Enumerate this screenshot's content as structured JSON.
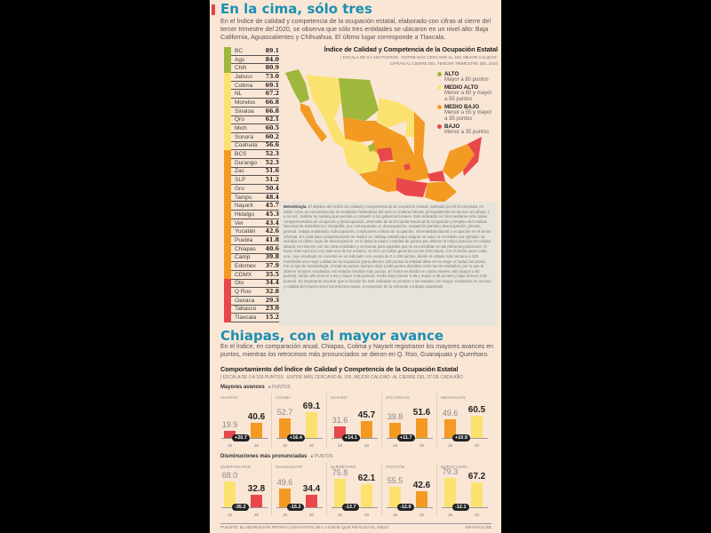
{
  "section1": {
    "title": "En la cima, sólo tres",
    "intro": "En el Índice de calidad y competencia de la ocupación estatal, elaborado con cifras al cierre del tercer trimestre del 2020, se observa que sólo tres entidades se ubicaron en un nivel alto: Baja California, Aguascalientes y Chihuahua. El último lugar corresponde a Tlaxcala."
  },
  "ranking": [
    {
      "state": "BC",
      "value": "89.1"
    },
    {
      "state": "Ags",
      "value": "84.0"
    },
    {
      "state": "Chih",
      "value": "80.9"
    },
    {
      "state": "Jalisco",
      "value": "73.0"
    },
    {
      "state": "Colima",
      "value": "69.1"
    },
    {
      "state": "NL",
      "value": "67.2"
    },
    {
      "state": "Morelos",
      "value": "66.8"
    },
    {
      "state": "Sinaloa",
      "value": "66.8"
    },
    {
      "state": "Qro",
      "value": "62.1"
    },
    {
      "state": "Mich",
      "value": "60.5"
    },
    {
      "state": "Sonora",
      "value": "60.2"
    },
    {
      "state": "Coahuila",
      "value": "56.6"
    },
    {
      "state": "BCS",
      "value": "52.3"
    },
    {
      "state": "Durango",
      "value": "52.3"
    },
    {
      "state": "Zac",
      "value": "51.6"
    },
    {
      "state": "SLP",
      "value": "51.2"
    },
    {
      "state": "Gro",
      "value": "50.4"
    },
    {
      "state": "Tamps",
      "value": "48.4"
    },
    {
      "state": "Nayarit",
      "value": "45.7"
    },
    {
      "state": "Hidalgo",
      "value": "45.3"
    },
    {
      "state": "Ver",
      "value": "43.4"
    },
    {
      "state": "Yucatán",
      "value": "42.6"
    },
    {
      "state": "Puebla",
      "value": "41.8"
    },
    {
      "state": "Chiapas",
      "value": "40.6"
    },
    {
      "state": "Camp",
      "value": "39.8"
    },
    {
      "state": "Edomex",
      "value": "37.9"
    },
    {
      "state": "CDMX",
      "value": "35.5"
    },
    {
      "state": "Gto",
      "value": "34.4"
    },
    {
      "state": "Q Roo",
      "value": "32.8"
    },
    {
      "state": "Oaxaca",
      "value": "29.3"
    },
    {
      "state": "Tabasco",
      "value": "23.0"
    },
    {
      "state": "Tlaxcala",
      "value": "15.2"
    }
  ],
  "map": {
    "title": "Índice de Calidad y Competencia de la Ocupación Estatal",
    "subtitle1": "| ESCALA DE 0 A 100 PUNTOS · ENTRE MÁS CERCANO AL 100, MEJOR CALIDAD·",
    "subtitle2": "CIFRAS AL CIERRE DEL TERCER TRIMESTRE DEL 2020",
    "legend": [
      {
        "label": "ALTO",
        "desc": "Mayor a 80 puntos",
        "color": "#9db83c"
      },
      {
        "label": "MEDIO ALTO",
        "desc": "Menor a 80 y mayor a 55 puntos",
        "color": "#fbe26e"
      },
      {
        "label": "MEDIO BAJO",
        "desc": "Menor a 55 y mayor a 35 puntos",
        "color": "#f39a22"
      },
      {
        "label": "BAJO",
        "desc": "Menor a 35 puntos",
        "color": "#e8474c"
      }
    ]
  },
  "methodology": {
    "label": "Metodología.",
    "text": "El objetivo del Índice de calidad y competencia de la ocupación estatal, realizado por El Economista, es saber cómo se encuentran las 32 entidades federativas del país en materia laboral, principalmente en acceso al trabajo, y a su vez, realizar un ranking que permita a competir a los gobiernos locales. Este indicador se hizo mediante ocho tasas complementarias de ocupación y desocupación, obtenidas de la Encuesta Nacional de Ocupación y Empleo del Instituto Nacional de Estadística y Geografía, que corresponden a: desocupación, ocupación parcial y desocupación, presión general, trabajo asalariado, subocupación, condiciones críticas de ocupación, informalidad laboral y ocupación en el sector informal. En cada tasa complementaria se realizó un ranking estatal para asignar un valor; si el estado, por ejemplo, se ubicaba en último lugar de desocupación, se le daba la mayor cantidad de puntos por obtener la mejor posición en calidad laboral, en relación con las otras entidades y viceversa para aquellas que se encontraban en las primeras posiciones. Al hacer este ejercicio con cada uno de los estados, se hizo un índice general con las ocho tasas, con el mismo peso cada una, cuyo resultado se convirtió en un indicador con escala de 0 a 100 puntos, donde el estado más cercano a 100 manifiesta una mejor calidad de la ocupación (para obtener 100 puntos la entidad debe ser la mejor en todas las tasas). Por el tipo de metodología, el total de puntos siempre dará 1,650 puntos divididos entre las 32 entidades, por lo que al obtener mejores resultados, los estados tendrán más puntos. El índice se dividió en cuatro niveles: alto (mayor a 80 puntos), medio alto (menor a 80 y mayor a 55 puntos), medio bajo (menor a 55 y mayor a 35 puntos) y bajo (menor a 35 puntos). Es importante recalcar que la función de este indicador es premiar a los estados con mayor constancia en acceso y calidad del empleo tener las menores tasas, a excepción de la referente a trabajo asalariado."
  },
  "section2": {
    "title": "Chiapas, con el mayor avance",
    "intro": "En el Índice, en comparación anual, Chiapas, Colima y Nayarit registraron los mayores avances en puntos, mientras los retrocesos más pronunciados se dieron en Q. Roo, Guanajuato y Querétaro.",
    "chart_title": "Comportamiento del Índice de Calidad y Competencia de la Ocupación Estatal",
    "chart_subtitle": "| ESCALA DE 0 A 100 PUNTOS · ENTRE MÁS CERCANO AL 100, MEJOR CALIDAD· AL CIERRE DEL 3T DE CADA AÑO",
    "row1_label": "Mayores avances",
    "row2_label": "Disminuciones más pronunciadas",
    "units_label": "PUNTOS",
    "source": "FUENTE: ELABORACIÓN PROPIA CON DATOS DE LA ENOE QUE REALIZA EL INEGI",
    "credit": "GRÁFICO EE"
  },
  "chart_data": {
    "type": "bar",
    "categories": [
      "19",
      "20"
    ],
    "ylim": [
      0,
      100
    ],
    "groups": [
      {
        "row": "Mayores avances",
        "name": "CHIAPAS",
        "values": [
          19.9,
          40.6
        ],
        "change": "+20.7"
      },
      {
        "row": "Mayores avances",
        "name": "COLIMA",
        "values": [
          52.7,
          69.1
        ],
        "change": "+16.4"
      },
      {
        "row": "Mayores avances",
        "name": "NAYARIT",
        "values": [
          31.6,
          45.7
        ],
        "change": "+14.1"
      },
      {
        "row": "Mayores avances",
        "name": "ZACATECAS",
        "values": [
          39.8,
          51.6
        ],
        "change": "+11.7"
      },
      {
        "row": "Mayores avances",
        "name": "MICHOACÁN",
        "values": [
          49.6,
          60.5
        ],
        "change": "+10.9"
      },
      {
        "row": "Disminuciones más pronunciadas",
        "name": "QUINTANA ROO",
        "values": [
          68.0,
          32.8
        ],
        "change": "-35.2"
      },
      {
        "row": "Disminuciones más pronunciadas",
        "name": "GUANAJUATO",
        "values": [
          49.6,
          34.4
        ],
        "change": "-15.2"
      },
      {
        "row": "Disminuciones más pronunciadas",
        "name": "QUERÉTARO",
        "values": [
          75.8,
          62.1
        ],
        "change": "-13.7"
      },
      {
        "row": "Disminuciones más pronunciadas",
        "name": "YUCATÁN",
        "values": [
          55.5,
          42.6
        ],
        "change": "-12.9"
      },
      {
        "row": "Disminuciones más pronunciadas",
        "name": "NUEVO LEÓN",
        "values": [
          79.3,
          67.2
        ],
        "change": "-12.1"
      }
    ]
  }
}
